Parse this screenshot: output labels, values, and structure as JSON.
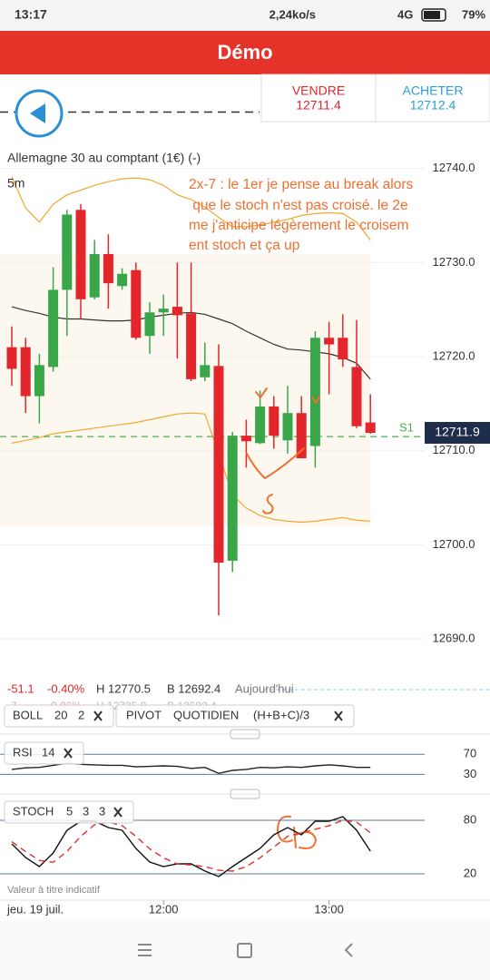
{
  "status_bar": {
    "time": "13:17",
    "speed": "2,24ko/s",
    "network": "4G",
    "battery": "79%"
  },
  "header": {
    "title": "Démo"
  },
  "trade": {
    "sell": {
      "label": "VENDRE",
      "price": 12711.4
    },
    "buy": {
      "label": "ACHETER",
      "price": 12712.4
    }
  },
  "overlays": [
    {
      "name": "BOLL",
      "params": [
        20,
        2
      ]
    },
    {
      "name": "PIVOT",
      "params": [
        "QUOTIDIEN",
        "(H+B+C)/3"
      ]
    }
  ],
  "stats": {
    "change": -51.1,
    "change_pct": "-0.40%",
    "high": "H 12770.5",
    "low": "B 12692.4",
    "period": "Aujourd'hui"
  },
  "stats_prev": {
    "change": -7.0,
    "change_pct": "-0.06%",
    "high": "H 12735.9",
    "low": "B 12692.4"
  },
  "disclaimer": "Valeur à titre indicatif",
  "chart_data": [
    {
      "type": "candlestick",
      "title": "Allemagne 30 au comptant (1€) (-)",
      "subtitle": "5m",
      "annotation": [
        "2x-7 : le 1er je pense au break alors",
        " que le stoch n'est pas croisé. le 2e",
        "me j'anticipe légèrement le croisem",
        "ent stoch et ça up"
      ],
      "date": "jeu. 19 juil.",
      "categories": [
        null,
        null,
        null,
        null,
        null,
        null,
        null,
        null,
        null,
        null,
        null,
        "12:00",
        null,
        null,
        null,
        null,
        null,
        null,
        null,
        null,
        null,
        null,
        null,
        "13:00",
        null,
        null,
        null
      ],
      "open": [
        12721.0,
        12721.0,
        12715.8,
        12718.9,
        12727.1,
        12735.6,
        12726.3,
        12730.9,
        12727.5,
        12729.2,
        12722.2,
        12724.7,
        12725.3,
        12724.6,
        12717.8,
        12719.0,
        12698.3,
        12711.6,
        12710.8,
        12714.7,
        12711.1,
        12714.0,
        12710.5,
        12722.0,
        12722.0,
        12718.9,
        12713.0
      ],
      "high": [
        12723.2,
        12722.0,
        12720.3,
        12729.5,
        12735.6,
        12736.2,
        12732.4,
        12733.0,
        12729.4,
        12730.0,
        12725.8,
        12726.6,
        12730.0,
        12730.0,
        12721.5,
        12721.3,
        12712.0,
        12713.3,
        12716.4,
        12715.8,
        12716.9,
        12715.8,
        12722.7,
        12723.7,
        12724.5,
        12723.9,
        12716.0
      ],
      "low": [
        12716.9,
        12714.0,
        12712.9,
        12718.4,
        12722.2,
        12724.0,
        12726.1,
        12725.1,
        12727.1,
        12721.8,
        12720.3,
        12722.2,
        12719.8,
        12717.4,
        12717.4,
        12692.5,
        12697.1,
        12708.2,
        12710.7,
        12710.2,
        12709.7,
        12709.2,
        12708.2,
        12716.0,
        12718.9,
        12712.4,
        12711.8
      ],
      "close": [
        12718.7,
        12715.8,
        12719.1,
        12727.1,
        12735.1,
        12726.1,
        12730.9,
        12727.8,
        12728.8,
        12722.0,
        12724.7,
        12725.1,
        12724.4,
        12717.6,
        12719.1,
        12698.1,
        12711.6,
        12711.0,
        12714.7,
        12711.6,
        12714.0,
        12709.2,
        12722.0,
        12721.3,
        12719.7,
        12712.6,
        12711.9
      ],
      "up_color": "#3aa64a",
      "down_color": "#e3262b",
      "bands": {
        "color": "#f0a830",
        "middle_color": "#333333",
        "upper": [
          12739.1,
          12735.8,
          12734.3,
          12736.2,
          12737.2,
          12737.7,
          12738.2,
          12738.6,
          12738.9,
          12739.0,
          12738.8,
          12738.2,
          12737.2,
          12736.7,
          12735.9,
          12734.8,
          12733.8,
          12733.8,
          12734.0,
          12734.3,
          12734.6,
          12735.0,
          12735.2,
          12735.3,
          12735.2,
          12734.3,
          12732.4
        ],
        "middle": [
          12725.3,
          12724.9,
          12724.6,
          12724.2,
          12724.0,
          12724.0,
          12723.9,
          12723.8,
          12723.8,
          12723.9,
          12724.2,
          12724.4,
          12724.6,
          12724.7,
          12724.5,
          12724.0,
          12723.5,
          12722.7,
          12722.0,
          12721.3,
          12720.8,
          12720.7,
          12720.5,
          12720.3,
          12719.9,
          12719.3,
          12717.6
        ],
        "lower": [
          12710.8,
          12711.1,
          12711.4,
          12711.8,
          12712.0,
          12712.2,
          12712.4,
          12712.6,
          12712.8,
          12713.0,
          12713.3,
          12713.6,
          12713.9,
          12714.0,
          12713.9,
          12709.7,
          12705.3,
          12703.9,
          12703.1,
          12702.7,
          12702.5,
          12702.4,
          12702.5,
          12702.7,
          12702.9,
          12702.6,
          12702.5
        ]
      },
      "last_price": 12711.9,
      "pivot": {
        "label": "S1",
        "value": 12711.5,
        "color": "#4caf50"
      },
      "order_level": 12746.0,
      "ylim": [
        12684.6,
        12750.0
      ],
      "yticks": [
        {
          "value": 12690,
          "label": "12690.0"
        },
        {
          "value": 12700,
          "label": "12700.0"
        },
        {
          "value": 12710,
          "label": "12710.0"
        },
        {
          "value": 12720,
          "label": "12720.0"
        },
        {
          "value": 12730,
          "label": "12730.0"
        },
        {
          "value": 12740,
          "label": "12740.0"
        }
      ],
      "grid": true
    },
    {
      "type": "line",
      "title": "RSI",
      "params": [
        14
      ],
      "series": [
        {
          "color": "#222222",
          "values": [
            40,
            43,
            44,
            48,
            52,
            50,
            49,
            48,
            48,
            45,
            46,
            47,
            46,
            42,
            44,
            32,
            38,
            40,
            44,
            43,
            45,
            44,
            47,
            49,
            47,
            44,
            44
          ]
        }
      ],
      "ylim": [
        0,
        94
      ],
      "yticks": [
        30,
        70
      ]
    },
    {
      "type": "line",
      "title": "STOCH",
      "params": [
        5,
        3,
        3
      ],
      "series": [
        {
          "color": "#111111",
          "values": [
            53.6,
            38.3,
            28.1,
            43.4,
            68.8,
            79.0,
            79.0,
            71.9,
            68.8,
            48.5,
            33.2,
            28.1,
            31.2,
            31.2,
            23.1,
            16.9,
            28.1,
            38.3,
            48.5,
            63.7,
            71.9,
            63.7,
            79.0,
            79.0,
            84.1,
            68.8,
            45.4
          ]
        },
        {
          "color": "#e03030",
          "dashed": true,
          "values": [
            56,
            45,
            35,
            33,
            45,
            62,
            75,
            78,
            74,
            62,
            48,
            38,
            31,
            30,
            28,
            24,
            23,
            28,
            38,
            50,
            62,
            66,
            70,
            74,
            80,
            78,
            66
          ]
        }
      ],
      "ylim": [
        -7.5,
        106.5
      ],
      "yticks": [
        20,
        80
      ]
    }
  ]
}
